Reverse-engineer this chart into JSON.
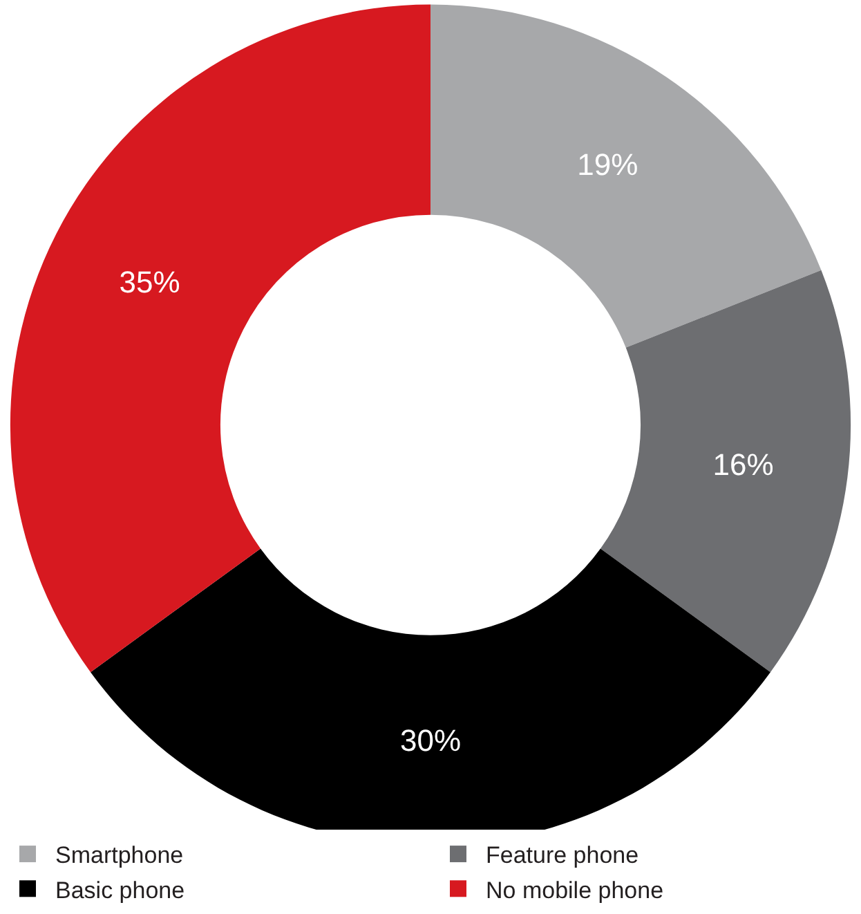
{
  "chart_data": {
    "type": "donut",
    "categories": [
      "Smartphone",
      "Feature phone",
      "Basic phone",
      "No mobile phone"
    ],
    "values": [
      19,
      16,
      30,
      35
    ],
    "colors": [
      "#a7a8aa",
      "#6d6e71",
      "#000000",
      "#d71920"
    ],
    "value_labels": [
      "19%",
      "16%",
      "30%",
      "35%"
    ],
    "legend": "bottom"
  }
}
